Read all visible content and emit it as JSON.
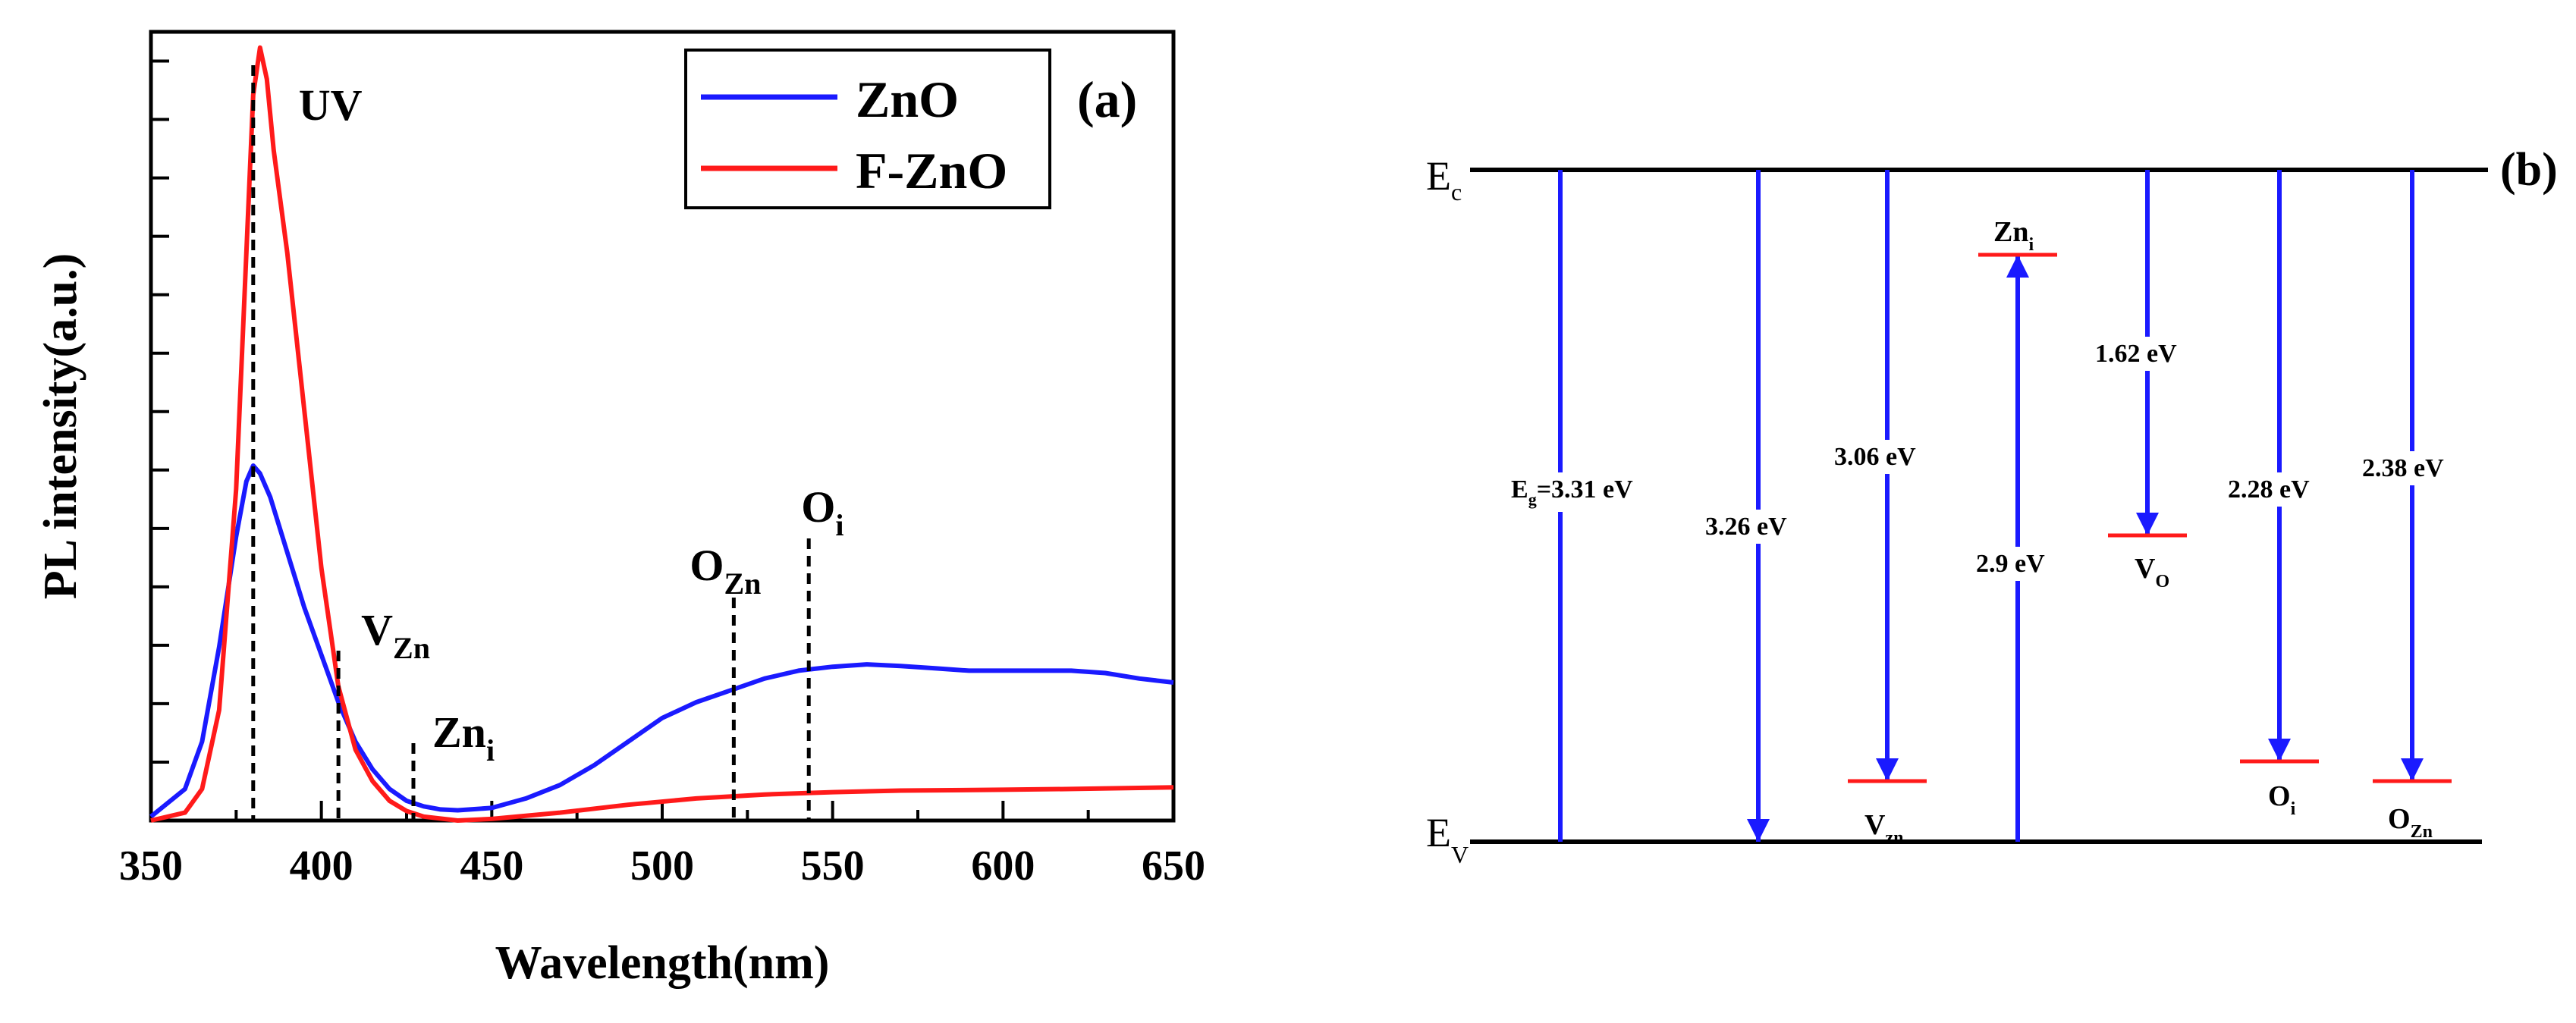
{
  "chart_data": [
    {
      "type": "line",
      "panel_label": "(a)",
      "xlabel": "Wavelength(nm)",
      "ylabel": "PL intensity(a.u.)",
      "xlim": [
        350,
        650
      ],
      "xticks": [
        "350",
        "400",
        "450",
        "500",
        "550",
        "600",
        "650"
      ],
      "ylim": [
        0,
        1.0
      ],
      "legend_position": "top-right",
      "series": [
        {
          "name": "ZnO",
          "color": "#1a1aff",
          "x": [
            350,
            360,
            365,
            370,
            375,
            378,
            380,
            382,
            385,
            390,
            395,
            400,
            405,
            410,
            415,
            420,
            425,
            430,
            435,
            440,
            450,
            460,
            470,
            480,
            490,
            500,
            510,
            520,
            530,
            540,
            550,
            560,
            570,
            580,
            590,
            600,
            610,
            620,
            630,
            640,
            650
          ],
          "y": [
            0.005,
            0.04,
            0.1,
            0.22,
            0.36,
            0.43,
            0.45,
            0.44,
            0.41,
            0.34,
            0.27,
            0.21,
            0.15,
            0.1,
            0.065,
            0.04,
            0.025,
            0.018,
            0.014,
            0.013,
            0.016,
            0.028,
            0.045,
            0.07,
            0.1,
            0.13,
            0.15,
            0.165,
            0.18,
            0.19,
            0.195,
            0.198,
            0.196,
            0.193,
            0.19,
            0.19,
            0.19,
            0.19,
            0.187,
            0.18,
            0.175
          ]
        },
        {
          "name": "F-ZnO",
          "color": "#ff1a1a",
          "x": [
            350,
            360,
            365,
            370,
            375,
            378,
            380,
            382,
            384,
            386,
            390,
            395,
            400,
            405,
            410,
            415,
            420,
            425,
            430,
            440,
            450,
            470,
            490,
            510,
            530,
            550,
            570,
            600,
            620,
            650
          ],
          "y": [
            0.0,
            0.01,
            0.04,
            0.14,
            0.42,
            0.72,
            0.92,
            0.98,
            0.94,
            0.85,
            0.72,
            0.52,
            0.32,
            0.17,
            0.09,
            0.05,
            0.025,
            0.012,
            0.005,
            0.0,
            0.002,
            0.01,
            0.02,
            0.028,
            0.033,
            0.036,
            0.038,
            0.039,
            0.04,
            0.042
          ]
        }
      ],
      "annotations": [
        {
          "base": "UV",
          "sub": "",
          "x": 380
        },
        {
          "base": "V",
          "sub": "Zn",
          "x": 405
        },
        {
          "base": "Zn",
          "sub": "i",
          "x": 427
        },
        {
          "base": "O",
          "sub": "Zn",
          "x": 521
        },
        {
          "base": "O",
          "sub": "i",
          "x": 543
        }
      ]
    },
    {
      "type": "diagram",
      "panel_label": "(b)",
      "levels": {
        "conduction": {
          "base": "E",
          "sub": "c"
        },
        "valence": {
          "base": "E",
          "sub": "V"
        }
      },
      "colors": {
        "arrow": "#1a1aff",
        "defect_level": "#ff1a1a",
        "band": "#000000"
      },
      "transitions": [
        {
          "energy_ev": 3.31,
          "label_base": "E",
          "label_sub": "g",
          "label_rest": "=3.31 eV",
          "direction": "none",
          "level": "",
          "level_sub": ""
        },
        {
          "energy_ev": 3.26,
          "label_base": "3.26 eV",
          "label_sub": "",
          "label_rest": "",
          "direction": "down",
          "level": "",
          "level_sub": ""
        },
        {
          "energy_ev": 3.06,
          "label_base": "3.06 eV",
          "label_sub": "",
          "label_rest": "",
          "direction": "down",
          "level": "V",
          "level_sub": "zn"
        },
        {
          "energy_ev": 2.9,
          "label_base": "2.9 eV",
          "label_sub": "",
          "label_rest": "",
          "direction": "up",
          "level": "Zn",
          "level_sub": "i"
        },
        {
          "energy_ev": 1.62,
          "label_base": "1.62 eV",
          "label_sub": "",
          "label_rest": "",
          "direction": "down",
          "level": "V",
          "level_sub": "O"
        },
        {
          "energy_ev": 2.28,
          "label_base": "2.28 eV",
          "label_sub": "",
          "label_rest": "",
          "direction": "down",
          "level": "O",
          "level_sub": "i"
        },
        {
          "energy_ev": 2.38,
          "label_base": "2.38 eV",
          "label_sub": "",
          "label_rest": "",
          "direction": "down",
          "level": "O",
          "level_sub": "Zn"
        }
      ]
    }
  ]
}
